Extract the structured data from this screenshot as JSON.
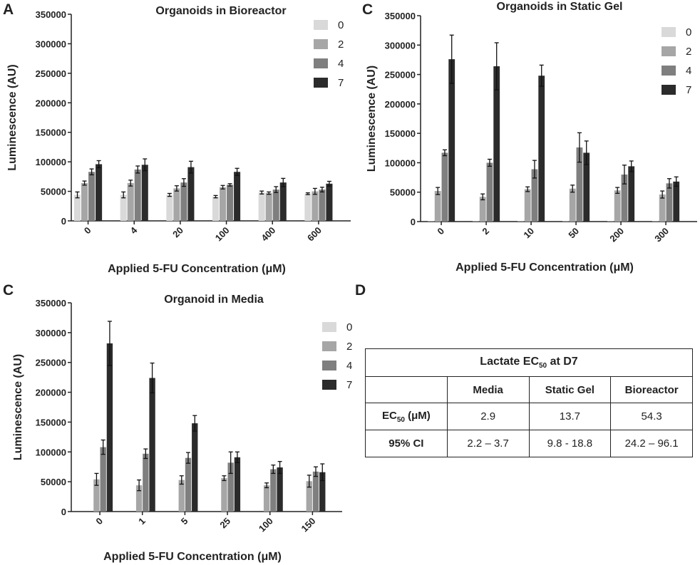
{
  "panels": {
    "a": {
      "letter": "A"
    },
    "b": {
      "letter": "C"
    },
    "c": {
      "letter": "C"
    },
    "d": {
      "letter": "D"
    }
  },
  "colors": {
    "day0": "#d9d9d9",
    "day2": "#a6a6a6",
    "day4": "#7f7f7f",
    "day7": "#2b2b2b",
    "axis": "#222222",
    "error": "#111111"
  },
  "chart_data": [
    {
      "id": "bioreactor",
      "type": "bar",
      "title": "Organoids in Bioreactor",
      "xlabel": "Applied 5-FU Concentration (μM)",
      "ylabel": "Luminescence (AU)",
      "ylim": [
        0,
        350000
      ],
      "yticks": [
        "0",
        "50000",
        "100000",
        "150000",
        "200000",
        "250000",
        "300000",
        "350000"
      ],
      "categories": [
        "0",
        "4",
        "20",
        "100",
        "400",
        "600"
      ],
      "legend_position": "top-right",
      "series": [
        {
          "name": "0",
          "values": [
            44000,
            44000,
            44000,
            41000,
            48000,
            46000
          ],
          "errors": [
            5000,
            5000,
            2500,
            2000,
            2500,
            1500
          ]
        },
        {
          "name": "2",
          "values": [
            64000,
            64000,
            55000,
            57000,
            47000,
            50000
          ],
          "errors": [
            3500,
            5000,
            4500,
            3000,
            2000,
            5000
          ]
        },
        {
          "name": "4",
          "values": [
            83000,
            87000,
            65000,
            61000,
            53000,
            53000
          ],
          "errors": [
            5000,
            6000,
            6500,
            2000,
            5000,
            4000
          ]
        },
        {
          "name": "7",
          "values": [
            96000,
            95000,
            91000,
            83000,
            65000,
            63000
          ],
          "errors": [
            6000,
            10000,
            10000,
            6000,
            7000,
            4000
          ]
        }
      ]
    },
    {
      "id": "static-gel",
      "type": "bar",
      "title": "Organoids in Static Gel",
      "xlabel": "Applied 5-FU Concentration (μM)",
      "ylabel": "Luminescence (AU)",
      "ylim": [
        0,
        350000
      ],
      "yticks": [
        "0",
        "50000",
        "100000",
        "150000",
        "200000",
        "250000",
        "300000",
        "350000"
      ],
      "categories": [
        "0",
        "2",
        "10",
        "50",
        "200",
        "300"
      ],
      "legend_position": "top-right",
      "series": [
        {
          "name": "0",
          "values": [
            500,
            500,
            500,
            500,
            500,
            500
          ],
          "errors": [
            0,
            0,
            0,
            0,
            0,
            0
          ]
        },
        {
          "name": "2",
          "values": [
            52000,
            42000,
            55000,
            56000,
            53000,
            46000
          ],
          "errors": [
            6000,
            5000,
            4000,
            6000,
            5000,
            6000
          ]
        },
        {
          "name": "4",
          "values": [
            117000,
            100000,
            89000,
            126000,
            80000,
            65000
          ],
          "errors": [
            5000,
            6000,
            15000,
            25000,
            16000,
            8000
          ]
        },
        {
          "name": "7",
          "values": [
            276000,
            264000,
            248000,
            117000,
            94000,
            68000
          ],
          "errors": [
            41000,
            40000,
            18000,
            20000,
            9000,
            8000
          ]
        }
      ]
    },
    {
      "id": "media",
      "type": "bar",
      "title": "Organoid in Media",
      "xlabel": "Applied 5-FU Concentration (μM)",
      "ylabel": "Luminescence (AU)",
      "ylim": [
        0,
        350000
      ],
      "yticks": [
        "0",
        "50000",
        "100000",
        "150000",
        "200000",
        "250000",
        "300000",
        "350000"
      ],
      "categories": [
        "0",
        "1",
        "5",
        "25",
        "100",
        "150"
      ],
      "legend_position": "top-right",
      "series": [
        {
          "name": "0",
          "values": [
            0,
            0,
            0,
            0,
            0,
            0
          ],
          "errors": [
            0,
            0,
            0,
            0,
            0,
            0
          ]
        },
        {
          "name": "2",
          "values": [
            54000,
            44000,
            53000,
            56000,
            44000,
            51000
          ],
          "errors": [
            10000,
            9000,
            7000,
            4000,
            4000,
            10000
          ]
        },
        {
          "name": "4",
          "values": [
            108000,
            97000,
            90000,
            82000,
            71000,
            67000
          ],
          "errors": [
            12000,
            8000,
            9000,
            18000,
            7000,
            8000
          ]
        },
        {
          "name": "7",
          "values": [
            282000,
            224000,
            148000,
            91000,
            74000,
            66000
          ],
          "errors": [
            37000,
            25000,
            13000,
            9000,
            10000,
            14000
          ]
        }
      ]
    }
  ],
  "table": {
    "title": "Lactate EC",
    "title_sub": "50",
    "title_suffix": " at D7",
    "headers": [
      "Media",
      "Static Gel",
      "Bioreactor"
    ],
    "rows": [
      {
        "label": "EC",
        "label_sub": "50",
        "label_suffix": " (μM)",
        "values": [
          "2.9",
          "13.7",
          "54.3"
        ]
      },
      {
        "label": "95% CI",
        "label_sub": "",
        "label_suffix": "",
        "values": [
          "2.2 – 3.7",
          "9.8 - 18.8",
          "24.2 – 96.1"
        ]
      }
    ]
  }
}
